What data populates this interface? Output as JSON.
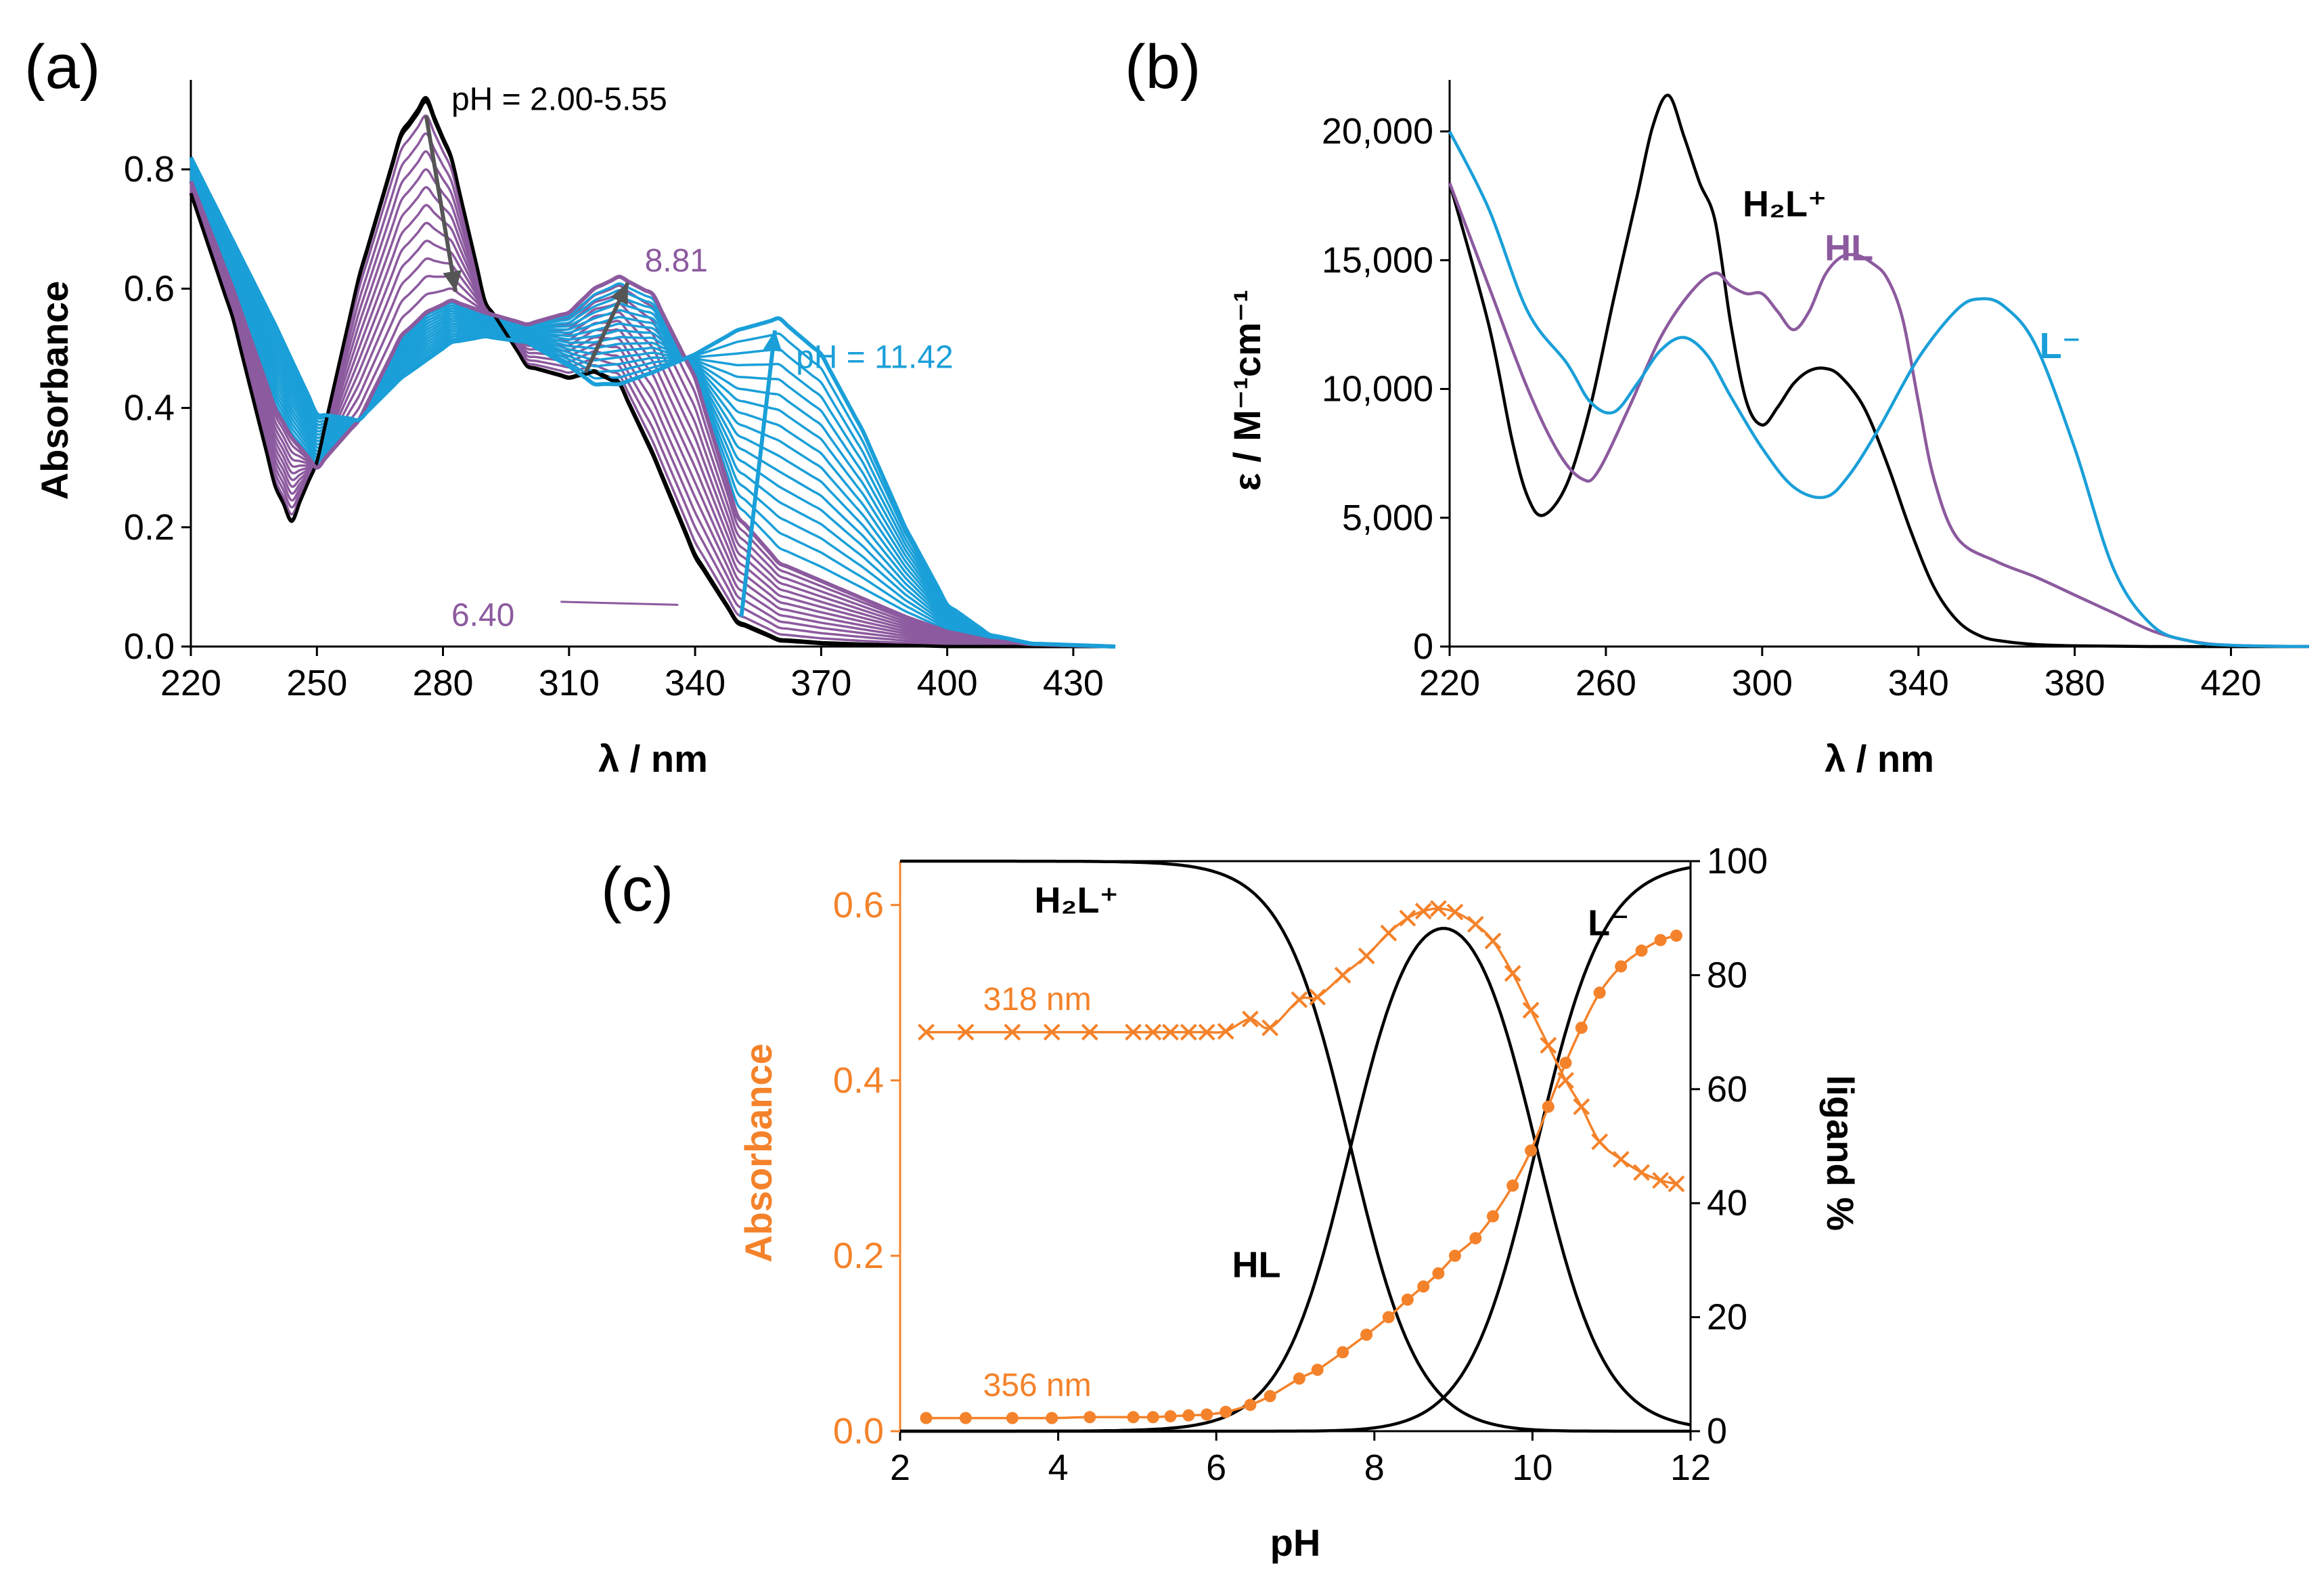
{
  "colors": {
    "black": "#000000",
    "purple": "#8c5a9e",
    "blue": "#1a9fd8",
    "orange": "#f4822a",
    "arrow_gray": "#555555"
  },
  "chart_data": [
    {
      "id": "a",
      "panel_label": "(a)",
      "type": "line",
      "title": "",
      "xlabel": "λ / nm",
      "ylabel": "Absorbance",
      "xlim": [
        220,
        440
      ],
      "ylim": [
        0.0,
        0.95
      ],
      "xticks": [
        220,
        250,
        280,
        310,
        340,
        370,
        400,
        430
      ],
      "yticks": [
        0.0,
        0.2,
        0.4,
        0.6,
        0.8
      ],
      "ytick_labels": [
        "0.0",
        "0.2",
        "0.4",
        "0.6",
        "0.8"
      ],
      "annotations": {
        "acid": "pH = 2.00-5.55",
        "mid1": "8.81",
        "mid2": "6.40",
        "base": "pH = 11.42"
      },
      "series_groups": [
        {
          "name": "pH 2.00-5.55",
          "color": "black",
          "count": 3
        },
        {
          "name": "pH 6.40-8.81",
          "color": "purple",
          "count": 12
        },
        {
          "name": "pH 8.81-11.42",
          "color": "blue",
          "count": 16
        }
      ],
      "endmember_spectra": {
        "x": [
          220,
          230,
          240,
          244,
          250,
          260,
          270,
          276,
          282,
          290,
          300,
          310,
          316,
          322,
          330,
          340,
          350,
          360,
          370,
          380,
          390,
          400,
          410,
          420,
          440
        ],
        "H2L": [
          0.76,
          0.55,
          0.27,
          0.21,
          0.31,
          0.62,
          0.86,
          0.92,
          0.82,
          0.58,
          0.47,
          0.45,
          0.46,
          0.44,
          0.32,
          0.15,
          0.04,
          0.01,
          0.005,
          0.003,
          0.002,
          0.0,
          0.0,
          0.0,
          0.0
        ],
        "HL": [
          0.78,
          0.6,
          0.4,
          0.35,
          0.3,
          0.38,
          0.52,
          0.56,
          0.58,
          0.56,
          0.54,
          0.56,
          0.6,
          0.62,
          0.59,
          0.45,
          0.22,
          0.14,
          0.11,
          0.08,
          0.05,
          0.025,
          0.01,
          0.004,
          0.0
        ],
        "L": [
          0.82,
          0.68,
          0.54,
          0.48,
          0.39,
          0.38,
          0.45,
          0.48,
          0.51,
          0.52,
          0.51,
          0.47,
          0.44,
          0.44,
          0.46,
          0.49,
          0.53,
          0.55,
          0.49,
          0.36,
          0.2,
          0.07,
          0.02,
          0.005,
          0.0
        ]
      }
    },
    {
      "id": "b",
      "panel_label": "(b)",
      "type": "line",
      "title": "",
      "xlabel": "λ / nm",
      "ylabel": "ε / M⁻¹cm⁻¹",
      "xlim": [
        220,
        440
      ],
      "ylim": [
        0,
        22000
      ],
      "xticks": [
        220,
        260,
        300,
        340,
        380,
        420
      ],
      "yticks": [
        0,
        5000,
        10000,
        15000,
        20000
      ],
      "ytick_labels": [
        "0",
        "5,000",
        "10,000",
        "15,000",
        "20,000"
      ],
      "series": [
        {
          "name": "H₂L⁺",
          "color": "black",
          "x": [
            220,
            230,
            236,
            240,
            244,
            250,
            256,
            262,
            268,
            272,
            276,
            280,
            284,
            288,
            292,
            296,
            300,
            304,
            308,
            312,
            316,
            320,
            326,
            332,
            338,
            344,
            350,
            356,
            362,
            370,
            380,
            400,
            440
          ],
          "y": [
            18000,
            12500,
            8000,
            5800,
            5100,
            6300,
            9300,
            13500,
            17500,
            20200,
            21400,
            19800,
            18000,
            16500,
            12500,
            9500,
            8600,
            9300,
            10200,
            10700,
            10800,
            10500,
            9300,
            7100,
            4500,
            2300,
            1000,
            400,
            200,
            80,
            30,
            0,
            0
          ]
        },
        {
          "name": "HL",
          "color": "purple",
          "x": [
            220,
            230,
            240,
            248,
            254,
            258,
            266,
            274,
            282,
            288,
            292,
            296,
            300,
            304,
            308,
            312,
            316,
            320,
            324,
            328,
            332,
            336,
            340,
            344,
            350,
            360,
            370,
            380,
            390,
            400,
            410,
            420,
            440
          ],
          "y": [
            18000,
            14000,
            10000,
            7500,
            6500,
            6800,
            9300,
            12000,
            13800,
            14500,
            14000,
            13700,
            13700,
            13000,
            12300,
            13000,
            14400,
            15100,
            15200,
            14900,
            14300,
            12700,
            9500,
            6500,
            4200,
            3300,
            2700,
            2000,
            1300,
            600,
            200,
            50,
            0
          ]
        },
        {
          "name": "L⁻",
          "color": "blue",
          "x": [
            220,
            230,
            240,
            250,
            256,
            262,
            268,
            274,
            280,
            286,
            292,
            300,
            308,
            316,
            322,
            330,
            340,
            350,
            356,
            362,
            370,
            380,
            390,
            400,
            410,
            420,
            440
          ],
          "y": [
            20000,
            17000,
            13000,
            11000,
            9500,
            9100,
            10200,
            11500,
            12000,
            11300,
            9700,
            7700,
            6200,
            5800,
            6600,
            8500,
            11200,
            13100,
            13500,
            13200,
            11700,
            7700,
            3000,
            800,
            200,
            50,
            0
          ]
        }
      ],
      "legend_labels": {
        "H2L": "H₂L⁺",
        "HL": "HL",
        "L": "L⁻"
      }
    },
    {
      "id": "c",
      "panel_label": "(c)",
      "type": "line",
      "title": "",
      "xlabel": "pH",
      "ylabel": "Absorbance",
      "y2label": "ligand %",
      "xlim": [
        2,
        12
      ],
      "ylim": [
        0.0,
        0.65
      ],
      "y2lim": [
        0,
        100
      ],
      "xticks": [
        2,
        4,
        6,
        8,
        10,
        12
      ],
      "yticks": [
        0.0,
        0.2,
        0.4,
        0.6
      ],
      "ytick_labels": [
        "0.0",
        "0.2",
        "0.4",
        "0.6"
      ],
      "y2ticks": [
        0,
        20,
        40,
        60,
        80,
        100
      ],
      "pKa": [
        7.7,
        10.05
      ],
      "species_labels": {
        "H2L": "H₂L⁺",
        "HL": "HL",
        "L": "L⁻"
      },
      "wavelength_labels": {
        "w318": "318 nm",
        "w356": "356 nm"
      },
      "series": [
        {
          "name": "318 nm",
          "color": "orange",
          "marker": "x",
          "x": [
            2.33,
            2.83,
            3.42,
            3.92,
            4.4,
            4.95,
            5.2,
            5.42,
            5.65,
            5.88,
            6.12,
            6.43,
            6.68,
            7.05,
            7.28,
            7.6,
            7.9,
            8.18,
            8.42,
            8.62,
            8.81,
            9.02,
            9.28,
            9.5,
            9.75,
            9.98,
            10.2,
            10.42,
            10.62,
            10.85,
            11.12,
            11.38,
            11.62,
            11.82
          ],
          "y": [
            0.455,
            0.455,
            0.455,
            0.455,
            0.455,
            0.455,
            0.455,
            0.455,
            0.455,
            0.455,
            0.456,
            0.47,
            0.46,
            0.492,
            0.495,
            0.52,
            0.542,
            0.568,
            0.585,
            0.593,
            0.596,
            0.592,
            0.578,
            0.559,
            0.522,
            0.48,
            0.44,
            0.4,
            0.37,
            0.33,
            0.31,
            0.295,
            0.286,
            0.282
          ]
        },
        {
          "name": "356 nm",
          "color": "orange",
          "marker": "dot",
          "x": [
            2.33,
            2.83,
            3.42,
            3.92,
            4.4,
            4.95,
            5.2,
            5.42,
            5.65,
            5.88,
            6.12,
            6.43,
            6.68,
            7.05,
            7.28,
            7.6,
            7.9,
            8.18,
            8.42,
            8.62,
            8.81,
            9.02,
            9.28,
            9.5,
            9.75,
            9.98,
            10.2,
            10.42,
            10.62,
            10.85,
            11.12,
            11.38,
            11.62,
            11.82
          ],
          "y": [
            0.015,
            0.015,
            0.015,
            0.015,
            0.016,
            0.016,
            0.016,
            0.017,
            0.018,
            0.019,
            0.022,
            0.03,
            0.04,
            0.06,
            0.07,
            0.09,
            0.11,
            0.13,
            0.15,
            0.165,
            0.18,
            0.2,
            0.22,
            0.245,
            0.28,
            0.32,
            0.37,
            0.42,
            0.46,
            0.5,
            0.53,
            0.548,
            0.56,
            0.565
          ]
        }
      ]
    }
  ]
}
